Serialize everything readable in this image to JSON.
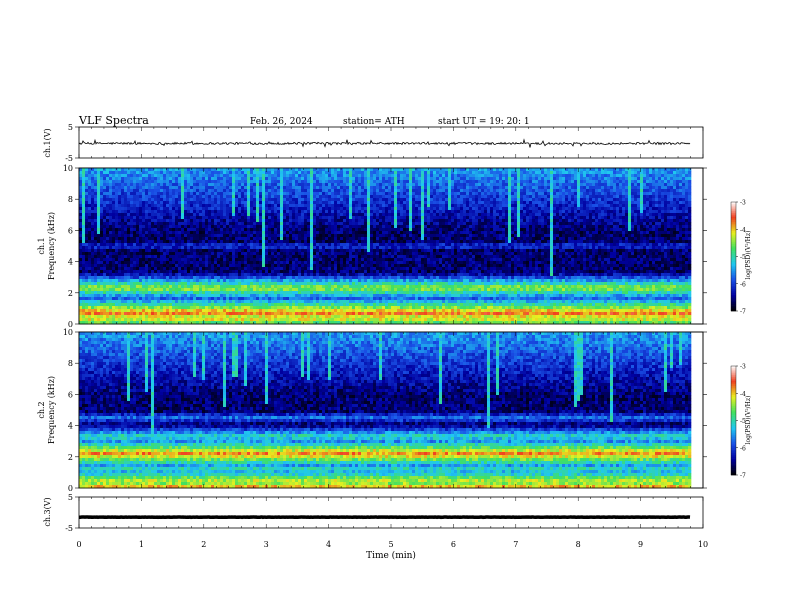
{
  "header": {
    "title": "VLF  Spectra",
    "date": "Feb. 26, 2024",
    "station": "station= ATH",
    "start_ut": "start  UT  =    19: 20: 1"
  },
  "chart_data": [
    {
      "type": "line",
      "panel": "ch1-waveform",
      "ylabel": "ch.1(V)",
      "ylim": [
        -5,
        5
      ],
      "yticks": [
        "5",
        "-5"
      ],
      "xlim": [
        0,
        10
      ],
      "data_extent_min": 9.8,
      "level": -0.3,
      "noise": 0.35
    },
    {
      "type": "heatmap",
      "panel": "ch1-spectrogram",
      "ylabel_channel": "ch.1",
      "ylabel": "Frequency  (kHz)",
      "ylim": [
        0,
        10
      ],
      "yticks": [
        "0",
        "2",
        "4",
        "6",
        "8",
        "10"
      ],
      "xlim": [
        0,
        10
      ],
      "data_extent_min": 9.8,
      "colorbar_label": "log(PSD)(V²/Hz)",
      "colorbar_ticks": [
        "-3",
        "-4",
        "-5",
        "-6",
        "-7"
      ],
      "colorbar_range": [
        -7,
        -3
      ],
      "bands": [
        {
          "freq_khz": 0.3,
          "level": -4.2
        },
        {
          "freq_khz": 0.7,
          "level": -3.7
        },
        {
          "freq_khz": 1.0,
          "level": -4.6
        },
        {
          "freq_khz": 2.1,
          "level": -4.9
        },
        {
          "freq_khz": 2.3,
          "level": -4.4
        },
        {
          "freq_khz": 5.0,
          "level": -6.0
        }
      ]
    },
    {
      "type": "heatmap",
      "panel": "ch2-spectrogram",
      "ylabel_channel": "ch.2",
      "ylabel": "Frequency  (kHz)",
      "ylim": [
        0,
        10
      ],
      "yticks": [
        "0",
        "2",
        "4",
        "6",
        "8",
        "10"
      ],
      "xlim": [
        0,
        10
      ],
      "data_extent_min": 9.8,
      "colorbar_label": "log(PSD)(V²/Hz)",
      "colorbar_ticks": [
        "-3",
        "-4",
        "-5",
        "-6",
        "-7"
      ],
      "colorbar_range": [
        -7,
        -3
      ],
      "bands": [
        {
          "freq_khz": 0.1,
          "level": -4.0
        },
        {
          "freq_khz": 0.5,
          "level": -4.3
        },
        {
          "freq_khz": 1.2,
          "level": -5.0
        },
        {
          "freq_khz": 2.0,
          "level": -4.3
        },
        {
          "freq_khz": 2.2,
          "level": -3.8
        },
        {
          "freq_khz": 3.3,
          "level": -5.0
        },
        {
          "freq_khz": 4.5,
          "level": -5.7
        }
      ]
    },
    {
      "type": "line",
      "panel": "ch3-waveform",
      "ylabel": "ch.3(V)",
      "ylim": [
        -5,
        5
      ],
      "yticks": [
        "5",
        "-5"
      ],
      "xlim": [
        0,
        10
      ],
      "data_extent_min": 9.8,
      "level": -1.5,
      "noise": 0.05
    }
  ],
  "xaxis": {
    "label": "Time  (min)",
    "ticks": [
      "0",
      "1",
      "2",
      "3",
      "4",
      "5",
      "6",
      "7",
      "8",
      "9",
      "10"
    ]
  },
  "colors": {
    "colormap": [
      "#000000",
      "#0000a0",
      "#1a50e6",
      "#20c8f0",
      "#40e060",
      "#e8f020",
      "#f04020",
      "#ffffff"
    ]
  }
}
